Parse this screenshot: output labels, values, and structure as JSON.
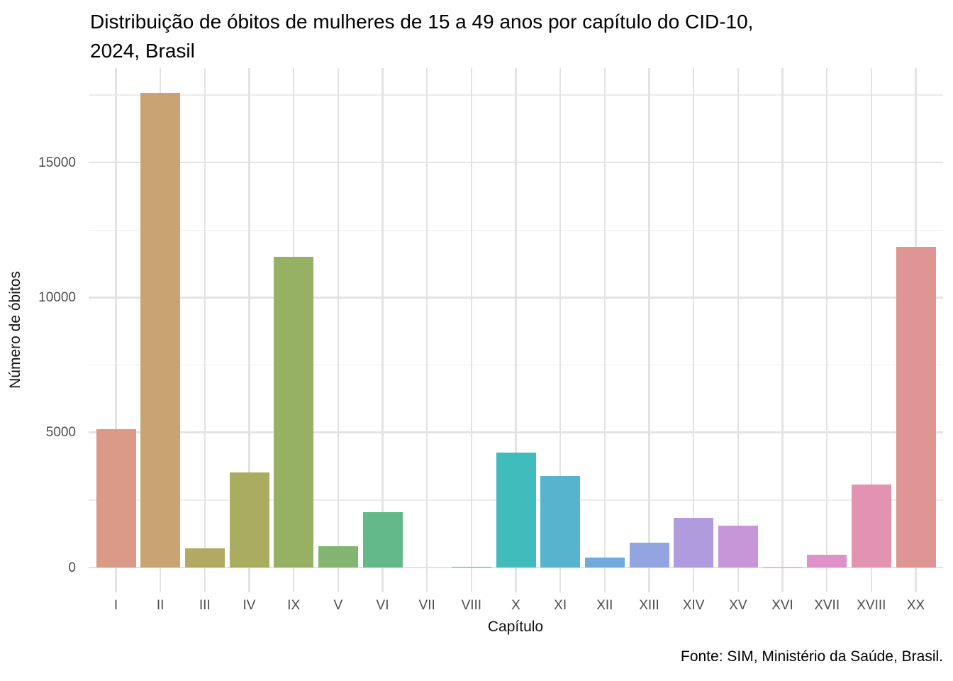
{
  "header": {
    "title_line1": "Distribuição de óbitos de mulheres de 15 a 49 anos por capítulo do CID-10,",
    "title_line2": "2024, Brasil"
  },
  "footer": {
    "caption": "Fonte: SIM, Ministério da Saúde, Brasil."
  },
  "chart_data": {
    "type": "bar",
    "title": "Distribuição de óbitos de mulheres de 15 a 49 anos por capítulo do CID-10, 2024, Brasil",
    "xlabel": "Capítulo",
    "ylabel": "Número de óbitos",
    "categories": [
      "I",
      "II",
      "III",
      "IV",
      "IX",
      "V",
      "VI",
      "VII",
      "VIII",
      "X",
      "XI",
      "XII",
      "XIII",
      "XIV",
      "XV",
      "XVI",
      "XVII",
      "XVIII",
      "XX"
    ],
    "values": [
      5130,
      17590,
      710,
      3510,
      11510,
      790,
      2050,
      2,
      30,
      4250,
      3400,
      370,
      920,
      1850,
      1540,
      3,
      480,
      3070,
      11890
    ],
    "bar_colors": [
      "#D99A88",
      "#C9A472",
      "#B4A963",
      "#AAAD60",
      "#97B164",
      "#81B571",
      "#63B98A",
      "#4FBB9B",
      "#3EBDAF",
      "#41BCBC",
      "#56B4CF",
      "#6FAADB",
      "#92A5E0",
      "#B09BDE",
      "#C696D8",
      "#D594D3",
      "#DE92C7",
      "#E293B2",
      "#DF9593"
    ],
    "ylim": [
      0,
      18500
    ],
    "yticks_major": [
      0,
      5000,
      10000,
      15000
    ],
    "ytick_labels": [
      "0",
      "5000",
      "10000",
      "15000"
    ],
    "yticks_minor": [
      2500,
      7500,
      12500,
      17500
    ],
    "grid": "horizontal major+minor, vertical major per category",
    "legend": "none"
  },
  "style_colors": {
    "background": "#FFFFFF",
    "grid_major": "#E3E3E3",
    "grid_minor": "#ECECEC",
    "tick_label": "#4D4D4D",
    "text": "#000000"
  }
}
